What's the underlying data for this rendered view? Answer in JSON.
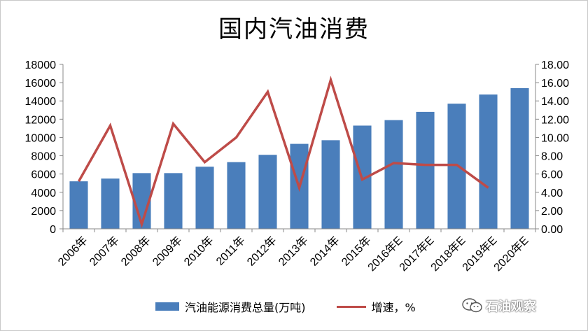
{
  "chart_data": {
    "type": "bar",
    "title": "国内汽油消费",
    "categories": [
      "2006年",
      "2007年",
      "2008年",
      "2009年",
      "2010年",
      "2011年",
      "2012年",
      "2013年",
      "2014年",
      "2015年",
      "2016年E",
      "2017年E",
      "2018年E",
      "2019年E",
      "2020年E"
    ],
    "series": [
      {
        "name": "汽油能源消费总量(万吨)",
        "type": "bar",
        "axis": "left",
        "values": [
          5200,
          5500,
          6100,
          6100,
          6800,
          7300,
          8100,
          9300,
          9700,
          11300,
          11900,
          12800,
          13700,
          14700,
          15400
        ]
      },
      {
        "name": "增速，%",
        "type": "line",
        "axis": "right",
        "values": [
          5.2,
          11.3,
          0.5,
          11.5,
          7.3,
          10.0,
          15.0,
          4.5,
          16.3,
          5.4,
          7.2,
          7.0,
          7.0,
          4.5,
          null
        ]
      }
    ],
    "ylim_left": [
      0,
      18000
    ],
    "ylim_right": [
      0,
      18
    ],
    "left_ticks": [
      "0",
      "2000",
      "4000",
      "6000",
      "8000",
      "10000",
      "12000",
      "14000",
      "16000",
      "18000"
    ],
    "right_ticks": [
      "0.00",
      "2.00",
      "4.00",
      "6.00",
      "8.00",
      "10.00",
      "12.00",
      "14.00",
      "16.00",
      "18.00"
    ],
    "grid": false,
    "legend": "bottom",
    "colors": {
      "bar": "#4a7ebb",
      "line": "#be4b48"
    }
  },
  "watermark": {
    "text": "石油观察",
    "icon": "wechat-icon"
  }
}
